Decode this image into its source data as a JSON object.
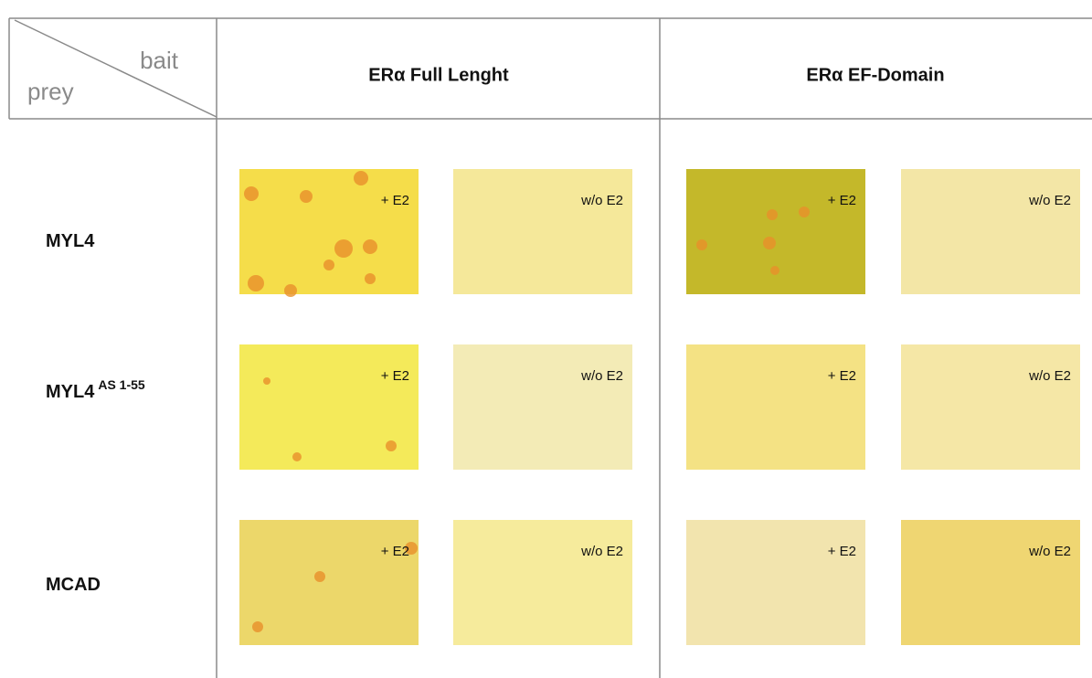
{
  "header": {
    "bait": "bait",
    "prey": "prey",
    "columns": [
      "ERα Full Lenght",
      "ERα EF-Domain"
    ]
  },
  "rows": [
    {
      "label": "MYL4",
      "panels": [
        "+ E2",
        "w/o E2",
        "+ E2",
        "w/o E2"
      ]
    },
    {
      "label": "MYL4",
      "superscript": "AS 1-55",
      "panels": [
        "+ E2",
        "w/o E2",
        "+ E2",
        "w/o E2"
      ]
    },
    {
      "label": "MCAD",
      "panels": [
        "+ E2",
        "w/o E2",
        "+ E2",
        "w/o E2"
      ]
    }
  ]
}
